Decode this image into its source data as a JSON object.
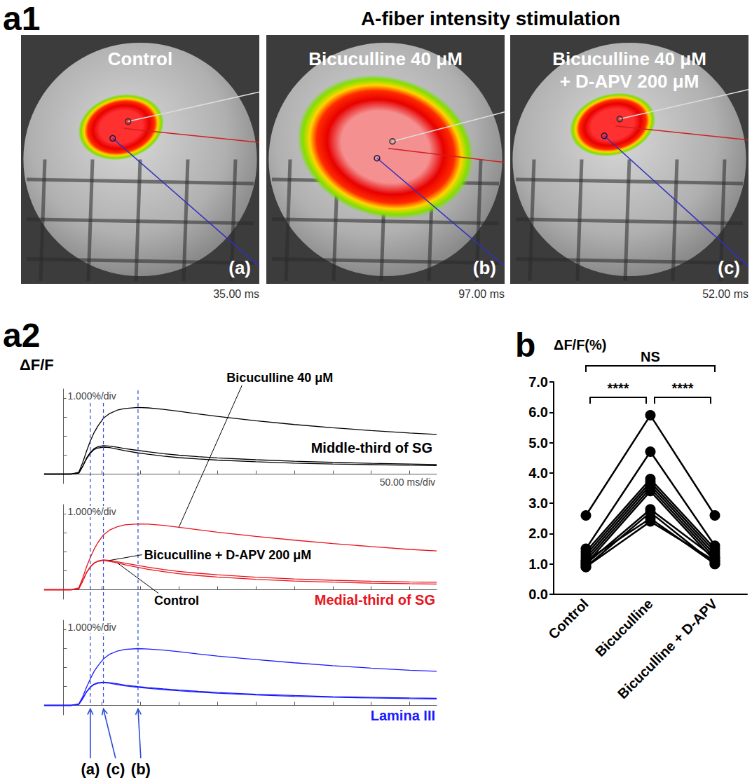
{
  "panel_a1": {
    "label": "a1",
    "title": "A-fiber intensity stimulation",
    "images": [
      {
        "title": "Control",
        "label": "(a)",
        "timestamp": "35.00 ms"
      },
      {
        "title": "Bicuculline 40 μM",
        "label": "(b)",
        "timestamp": "97.00 ms"
      },
      {
        "title": "Bicuculline 40 μM + D-APV 200 μM",
        "label": "(c)",
        "timestamp": "52.00 ms"
      }
    ]
  },
  "chart_data": [
    {
      "label": "a2",
      "type": "line",
      "y_title": "ΔF/F",
      "y_scale_label": "1.000%/div",
      "x_scale_label": "50.00 ms/div",
      "xlim": [
        -25,
        485
      ],
      "xticks": [
        0,
        50,
        100,
        150,
        200,
        250,
        300,
        350,
        400,
        450
      ],
      "ylim": [
        -0.5,
        4.5
      ],
      "yticks": [
        0,
        1,
        2,
        3,
        4
      ],
      "tick_labels": false,
      "grid": false,
      "x": [
        -25,
        -10,
        0,
        10,
        20,
        25,
        30,
        35,
        40,
        45,
        52,
        60,
        70,
        80,
        97,
        110,
        130,
        150,
        175,
        200,
        250,
        300,
        350,
        400,
        450,
        485
      ],
      "panels": [
        {
          "title": "Middle-third of SG",
          "color": "#000000",
          "series": [
            {
              "name": "Control",
              "values": [
                0,
                0,
                0,
                0,
                0.05,
                0.4,
                0.8,
                1.1,
                1.3,
                1.38,
                1.42,
                1.4,
                1.32,
                1.24,
                1.12,
                1.05,
                0.95,
                0.87,
                0.8,
                0.74,
                0.65,
                0.58,
                0.53,
                0.5,
                0.47,
                0.45
              ]
            },
            {
              "name": "Bicuculline + D-APV 200 μM",
              "values": [
                0,
                0,
                0,
                0,
                0.05,
                0.4,
                0.85,
                1.15,
                1.35,
                1.45,
                1.5,
                1.48,
                1.42,
                1.35,
                1.25,
                1.18,
                1.08,
                1.0,
                0.92,
                0.86,
                0.76,
                0.68,
                0.62,
                0.57,
                0.53,
                0.5
              ]
            },
            {
              "name": "Bicuculline 40 μM",
              "values": [
                0,
                0,
                0,
                0,
                0.1,
                0.6,
                1.2,
                1.75,
                2.2,
                2.55,
                2.95,
                3.2,
                3.38,
                3.47,
                3.52,
                3.5,
                3.42,
                3.32,
                3.18,
                3.05,
                2.82,
                2.62,
                2.45,
                2.3,
                2.17,
                2.1
              ]
            }
          ]
        },
        {
          "title": "Medial-third of SG",
          "color": "#e8141c",
          "series": [
            {
              "name": "Control",
              "values": [
                0,
                0,
                0,
                0,
                0.05,
                0.45,
                0.9,
                1.2,
                1.4,
                1.5,
                1.55,
                1.5,
                1.42,
                1.32,
                1.18,
                1.08,
                0.96,
                0.85,
                0.75,
                0.67,
                0.55,
                0.46,
                0.4,
                0.35,
                0.32,
                0.3
              ]
            },
            {
              "name": "Bicuculline + D-APV 200 μM",
              "values": [
                0,
                0,
                0,
                0,
                0.05,
                0.45,
                0.9,
                1.22,
                1.42,
                1.52,
                1.58,
                1.55,
                1.48,
                1.4,
                1.28,
                1.19,
                1.07,
                0.97,
                0.87,
                0.79,
                0.66,
                0.57,
                0.5,
                0.45,
                0.41,
                0.39
              ]
            },
            {
              "name": "Bicuculline 40 μM",
              "values": [
                0,
                0,
                0,
                0,
                0.1,
                0.6,
                1.2,
                1.7,
                2.15,
                2.5,
                2.9,
                3.15,
                3.33,
                3.43,
                3.48,
                3.47,
                3.4,
                3.3,
                3.17,
                3.04,
                2.82,
                2.62,
                2.44,
                2.28,
                2.13,
                2.05
              ]
            }
          ]
        },
        {
          "title": "Lamina III",
          "color": "#1a1aff",
          "series": [
            {
              "name": "Control",
              "values": [
                0,
                0,
                0,
                0,
                0.05,
                0.35,
                0.7,
                0.95,
                1.1,
                1.17,
                1.2,
                1.17,
                1.1,
                1.03,
                0.95,
                0.9,
                0.83,
                0.77,
                0.7,
                0.64,
                0.55,
                0.48,
                0.43,
                0.39,
                0.36,
                0.34
              ]
            },
            {
              "name": "Bicuculline + D-APV 200 μM",
              "values": [
                0,
                0,
                0,
                0,
                0.05,
                0.35,
                0.72,
                0.98,
                1.13,
                1.2,
                1.23,
                1.2,
                1.14,
                1.07,
                0.99,
                0.94,
                0.87,
                0.81,
                0.74,
                0.68,
                0.59,
                0.52,
                0.46,
                0.42,
                0.39,
                0.37
              ]
            },
            {
              "name": "Bicuculline 40 μM",
              "values": [
                0,
                0,
                0,
                0,
                0.08,
                0.45,
                0.95,
                1.4,
                1.8,
                2.1,
                2.45,
                2.7,
                2.87,
                2.96,
                3.0,
                2.98,
                2.92,
                2.84,
                2.72,
                2.61,
                2.42,
                2.25,
                2.1,
                1.97,
                1.86,
                1.8
              ]
            }
          ]
        }
      ],
      "annotations": [
        {
          "text": "Bicuculline 40 μM",
          "panel": "Medial-third of SG"
        },
        {
          "text": "Bicuculline + D-APV 200 μM",
          "panel": "Medial-third of SG"
        },
        {
          "text": "Control",
          "panel": "Medial-third of SG"
        }
      ],
      "time_markers": [
        {
          "x": 35,
          "label": "(a)"
        },
        {
          "x": 52,
          "label": "(c)"
        },
        {
          "x": 97,
          "label": "(b)"
        }
      ]
    },
    {
      "label": "b",
      "type": "line",
      "marker": "circle",
      "color": "#000000",
      "y_title": "ΔF/F(%)",
      "categories": [
        "Control",
        "Bicuculline",
        "Bicuculline + D-APV"
      ],
      "ylim": [
        0,
        7
      ],
      "yticks": [
        {
          "value": 0,
          "label": "0.0"
        },
        {
          "value": 1,
          "label": "1.0"
        },
        {
          "value": 2,
          "label": "2.0"
        },
        {
          "value": 3,
          "label": "3.0"
        },
        {
          "value": 4,
          "label": "4.0"
        },
        {
          "value": 5,
          "label": "5.0"
        },
        {
          "value": 6,
          "label": "6.0"
        },
        {
          "value": 7,
          "label": "7.0"
        }
      ],
      "grid": false,
      "series": [
        {
          "values": [
            2.6,
            5.9,
            2.6
          ]
        },
        {
          "values": [
            1.5,
            4.7,
            1.6
          ]
        },
        {
          "values": [
            1.4,
            3.8,
            1.5
          ]
        },
        {
          "values": [
            1.3,
            3.7,
            1.4
          ]
        },
        {
          "values": [
            1.2,
            3.6,
            1.3
          ]
        },
        {
          "values": [
            1.1,
            3.5,
            1.2
          ]
        },
        {
          "values": [
            1.0,
            3.4,
            1.1
          ]
        },
        {
          "values": [
            1.0,
            2.8,
            1.2
          ]
        },
        {
          "values": [
            0.9,
            2.7,
            1.0
          ]
        },
        {
          "values": [
            1.1,
            2.5,
            1.0
          ]
        },
        {
          "values": [
            0.9,
            2.4,
            1.1
          ]
        }
      ],
      "comparisons": [
        {
          "from": "Control",
          "to": "Bicuculline",
          "label": "****"
        },
        {
          "from": "Bicuculline",
          "to": "Bicuculline + D-APV",
          "label": "****"
        },
        {
          "from": "Control",
          "to": "Bicuculline + D-APV",
          "label": "NS"
        }
      ]
    }
  ]
}
